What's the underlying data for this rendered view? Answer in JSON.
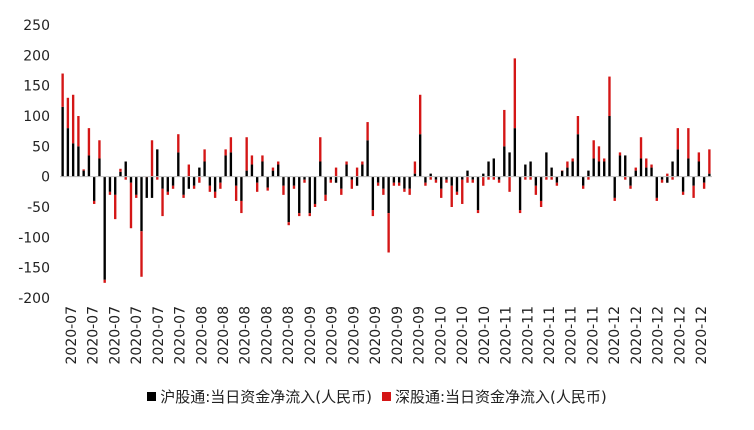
{
  "chart_data": {
    "type": "bar",
    "stacked": true,
    "ylim": [
      -200,
      250
    ],
    "yticks": [
      -200,
      -150,
      -100,
      -50,
      0,
      50,
      100,
      150,
      200,
      250
    ],
    "grid": false,
    "legend_position": "bottom",
    "xtick_labels": [
      "2020-07",
      "2020-07",
      "2020-07",
      "2020-07",
      "2020-07",
      "2020-07",
      "2020-08",
      "2020-08",
      "2020-08",
      "2020-08",
      "2020-08",
      "2020-09",
      "2020-09",
      "2020-09",
      "2020-09",
      "2020-09",
      "2020-09",
      "2020-10",
      "2020-10",
      "2020-10",
      "2020-11",
      "2020-11",
      "2020-11",
      "2020-11",
      "2020-11",
      "2020-12",
      "2020-12",
      "2020-12",
      "2020-12",
      "2020-12"
    ],
    "series": [
      {
        "name": "沪股通:当日资金净流入(人民币)",
        "color": "#000000",
        "values": [
          115,
          80,
          55,
          50,
          10,
          35,
          -40,
          30,
          -170,
          -25,
          -30,
          8,
          25,
          -10,
          -30,
          -90,
          -35,
          -35,
          45,
          -20,
          -25,
          -15,
          40,
          -30,
          -20,
          -15,
          15,
          25,
          -15,
          -25,
          -10,
          35,
          40,
          -15,
          -40,
          10,
          20,
          -10,
          25,
          -18,
          10,
          20,
          -15,
          -75,
          -15,
          -60,
          -5,
          -60,
          -45,
          25,
          -30,
          -5,
          -10,
          -20,
          20,
          -5,
          -15,
          20,
          60,
          -55,
          -10,
          -20,
          -60,
          -10,
          -10,
          -20,
          -20,
          5,
          70,
          -10,
          5,
          -5,
          -20,
          -5,
          -15,
          -25,
          -5,
          10,
          -5,
          -55,
          5,
          25,
          30,
          -5,
          50,
          40,
          80,
          -55,
          20,
          25,
          -15,
          -40,
          40,
          15,
          -10,
          10,
          15,
          25,
          70,
          -15,
          10,
          30,
          25,
          25,
          100,
          -35,
          35,
          35,
          -15,
          10,
          30,
          15,
          15,
          -35,
          -5,
          -10,
          25,
          45,
          -25,
          30,
          -15,
          25,
          -10,
          5
        ]
      },
      {
        "name": "深股通:当日资金净流入(人民币)",
        "color": "#d41616",
        "values": [
          55,
          50,
          80,
          50,
          2,
          45,
          -5,
          30,
          -5,
          -5,
          -40,
          5,
          -5,
          -75,
          -5,
          -75,
          0,
          60,
          -5,
          -45,
          -5,
          -5,
          30,
          -5,
          20,
          -5,
          -10,
          20,
          -10,
          -10,
          -10,
          10,
          25,
          -25,
          -20,
          55,
          15,
          -15,
          10,
          -5,
          5,
          5,
          -15,
          -5,
          -5,
          -5,
          -5,
          -5,
          -5,
          40,
          -10,
          -5,
          15,
          -10,
          5,
          -15,
          15,
          5,
          30,
          -10,
          -5,
          -10,
          -65,
          -5,
          -5,
          -5,
          -10,
          20,
          65,
          -5,
          -5,
          -5,
          -15,
          -5,
          -35,
          -5,
          -40,
          -10,
          -5,
          -5,
          -15,
          -5,
          -5,
          -5,
          60,
          -25,
          115,
          -5,
          -5,
          -5,
          -15,
          -10,
          -5,
          -5,
          -5,
          0,
          10,
          5,
          30,
          -5,
          -5,
          30,
          25,
          5,
          65,
          -5,
          5,
          -5,
          -5,
          5,
          35,
          15,
          5,
          -5,
          -5,
          5,
          -5,
          35,
          -5,
          50,
          -20,
          15,
          -10,
          40
        ]
      }
    ]
  },
  "legend": [
    {
      "label": "沪股通:当日资金净流入(人民币)",
      "color": "#000000"
    },
    {
      "label": "深股通:当日资金净流入(人民币)",
      "color": "#d41616"
    }
  ]
}
